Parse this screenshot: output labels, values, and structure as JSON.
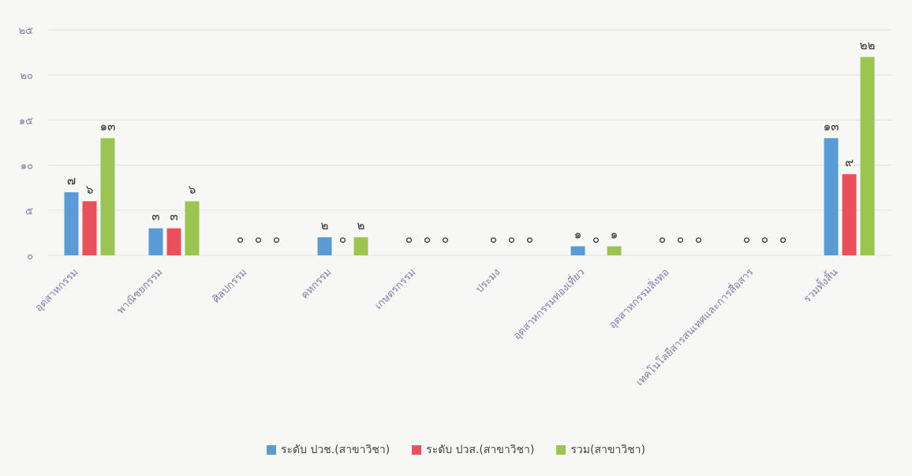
{
  "chart_data": {
    "type": "bar",
    "categories": [
      "อุตสาหกรรม",
      "พาณิชยกรรม",
      "ศิลปกรรม",
      "คหกรรม",
      "เกษตรกรรม",
      "ประมง",
      "อุตสาหกรรมท่องเที่ยว",
      "อุตสาหกรรมสิ่งทอ",
      "เทคโนโลยีสารสนเทศและการสื่อสาร",
      "รวมทั้งสิ้น"
    ],
    "series": [
      {
        "name": "ระดับ ปวช.(สาขาวิชา)",
        "color": "#5b9bd5",
        "values": [
          7,
          3,
          0,
          2,
          0,
          0,
          1,
          0,
          0,
          13
        ],
        "labels": [
          "๗",
          "๓",
          "๐",
          "๒",
          "๐",
          "๐",
          "๑",
          "๐",
          "๐",
          "๑๓"
        ]
      },
      {
        "name": "ระดับ ปวส.(สาขาวิชา)",
        "color": "#e8505b",
        "values": [
          6,
          3,
          0,
          0,
          0,
          0,
          0,
          0,
          0,
          9
        ],
        "labels": [
          "๖",
          "๓",
          "๐",
          "๐",
          "๐",
          "๐",
          "๐",
          "๐",
          "๐",
          "๙"
        ]
      },
      {
        "name": "รวม(สาขาวิชา)",
        "color": "#9bc453",
        "values": [
          13,
          6,
          0,
          2,
          0,
          0,
          1,
          0,
          0,
          22
        ],
        "labels": [
          "๑๓",
          "๖",
          "๐",
          "๒",
          "๐",
          "๐",
          "๑",
          "๐",
          "๐",
          "๒๒"
        ]
      }
    ],
    "ylim": [
      0,
      25
    ],
    "yticks": [
      0,
      5,
      10,
      15,
      20,
      25
    ],
    "ytick_labels": [
      "๐",
      "๕",
      "๑๐",
      "๑๕",
      "๒๐",
      "๒๕"
    ],
    "grid": true,
    "legend": "bottom",
    "colors": {
      "axis_text": "#8a7aa8",
      "label_text": "#333333",
      "grid": "#e2e2e2"
    }
  }
}
